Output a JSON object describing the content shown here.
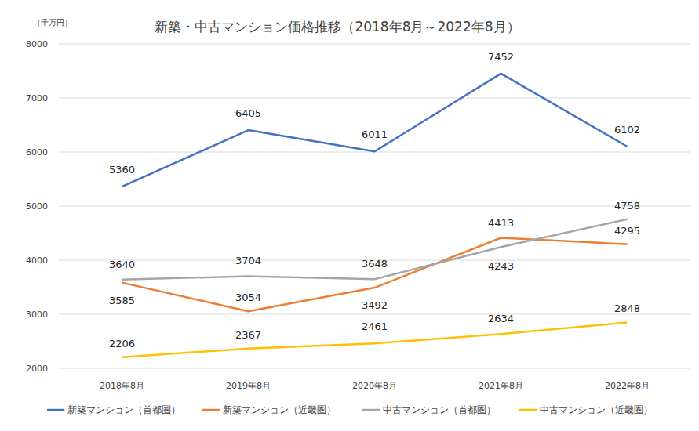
{
  "chart_data": {
    "type": "line",
    "title": "新築・中古マンション価格推移（2018年8月～2022年8月）",
    "y_label": "（千万円）",
    "categories": [
      "2018年8月",
      "2019年8月",
      "2020年8月",
      "2021年8月",
      "2022年8月"
    ],
    "series": [
      {
        "name": "新築マンション（首都圏）",
        "color": "#4472c4",
        "values": [
          5360,
          6405,
          6011,
          7452,
          6102
        ]
      },
      {
        "name": "新築マンション（近畿圏）",
        "color": "#ed7d31",
        "values": [
          3585,
          3054,
          3492,
          4413,
          4295
        ]
      },
      {
        "name": "中古マンション（首都圏）",
        "color": "#a5a5a5",
        "values": [
          3640,
          3704,
          3648,
          4243,
          4758
        ]
      },
      {
        "name": "中古マンション（近畿圏）",
        "color": "#ffc000",
        "values": [
          2206,
          2367,
          2461,
          2634,
          2848
        ]
      }
    ],
    "ylim": [
      2000,
      8000
    ],
    "yticks": [
      2000,
      3000,
      4000,
      5000,
      6000,
      7000,
      8000
    ],
    "grid": true,
    "legend": "bottom",
    "data_labels": true
  }
}
